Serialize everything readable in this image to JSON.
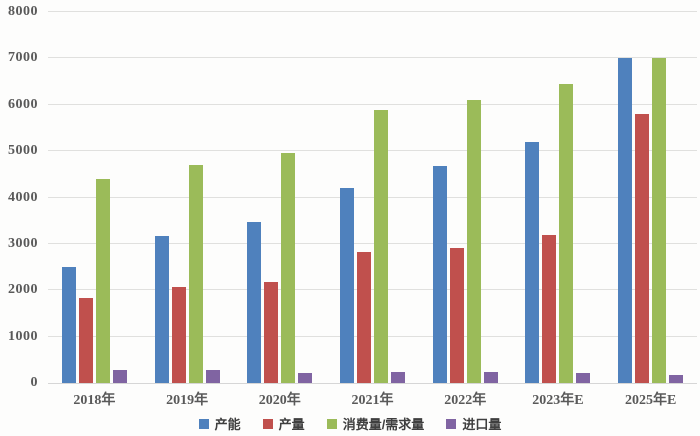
{
  "chart_data": {
    "type": "bar",
    "title": "",
    "xlabel": "",
    "ylabel": "",
    "categories": [
      "2018年",
      "2019年",
      "2020年",
      "2021年",
      "2022年",
      "2023年E",
      "2025年E"
    ],
    "series": [
      {
        "name": "产能",
        "color": "#4F81BD",
        "values": [
          2500,
          3180,
          3470,
          4200,
          4670,
          5200,
          7000
        ]
      },
      {
        "name": "产量",
        "color": "#C0504D",
        "values": [
          1840,
          2060,
          2170,
          2830,
          2910,
          3200,
          5800
        ]
      },
      {
        "name": "消费量/需求量",
        "color": "#9BBB59",
        "values": [
          4400,
          4700,
          4950,
          5890,
          6110,
          6450,
          7000
        ]
      },
      {
        "name": "进口量",
        "color": "#8064A2",
        "values": [
          280,
          270,
          220,
          240,
          230,
          220,
          180
        ]
      }
    ],
    "ylim": [
      0,
      8000
    ],
    "ytick_step": 1000,
    "yticks": [
      0,
      1000,
      2000,
      3000,
      4000,
      5000,
      6000,
      7000,
      8000
    ],
    "grid": "horizontal",
    "legend_position": "bottom",
    "axis_label_color": "#595959",
    "gridline_color": "#E0E0DE",
    "background_color": "#FDFDFC"
  }
}
